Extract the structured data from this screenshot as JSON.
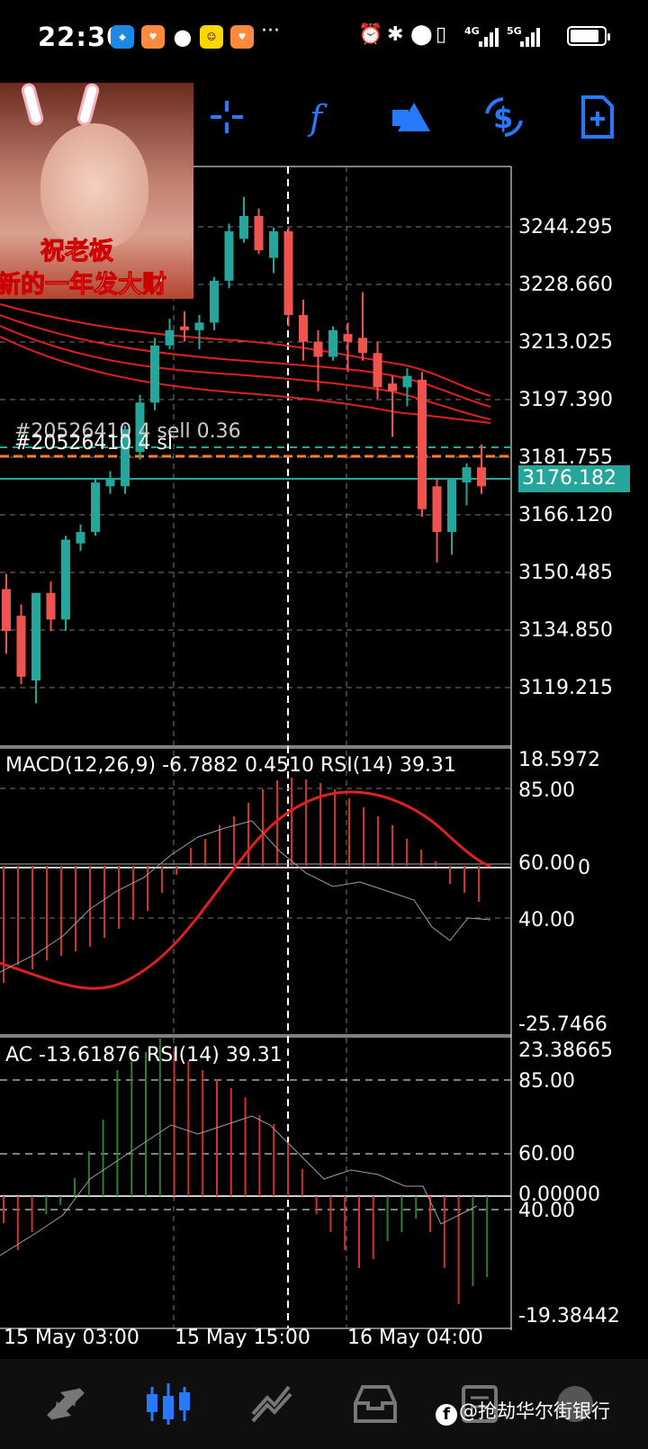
{
  "status_bar": {
    "time": "22:30",
    "notifications": [
      "hello-app-icon",
      "heart-app-icon",
      "chat-bubble-icon",
      "smile-app-icon",
      "heart-app-icon"
    ],
    "more": "···",
    "network_labels": [
      "4G",
      "5G"
    ],
    "battery_level": 0.85
  },
  "toolbar": {
    "tools": [
      "crosshair-icon",
      "function-icon",
      "objects-icon",
      "currency-swap-icon",
      "new-document-icon"
    ],
    "accent_color": "#2979ff"
  },
  "overlay": {
    "line1": "祝老板",
    "line2": "新的一年发大财"
  },
  "main_chart": {
    "y_labels": [
      "3244.295",
      "3228.660",
      "3213.025",
      "3197.390",
      "3181.755",
      "3166.120",
      "3150.485",
      "3134.850",
      "3119.215"
    ],
    "current_price": "3176.182",
    "order_label_1": "#20526410 4 sell 0.36",
    "order_label_2": "#20526410 4 sl"
  },
  "macd_panel": {
    "title": "MACD(12,26,9) -6.7882 0.4510 RSI(14) 39.31",
    "labels": {
      "top": "18.5972",
      "l85": "85.00",
      "l60": "60.00",
      "zero": "0",
      "l40": "40.00",
      "bottom": "-25.7466"
    }
  },
  "ac_panel": {
    "title": "AC -13.61876 RSI(14) 39.31",
    "labels": {
      "top": "23.38665",
      "l85": "85.00",
      "l60": "60.00",
      "zero": "0.00000",
      "l40": "40.00",
      "bottom": "-19.38442"
    }
  },
  "x_axis": [
    "15 May 03:00",
    "15 May 15:00",
    "16 May 04:00"
  ],
  "bottom_nav": [
    "quotes-icon",
    "chart-icon",
    "trade-icon",
    "history-icon",
    "messages-icon",
    "settings-icon"
  ],
  "watermark": "@抢劫华尔街银行",
  "chart_data": {
    "type": "candlestick",
    "bull_color": "#26a69a",
    "bear_color": "#ef5350",
    "y_range": [
      3108,
      3260
    ],
    "candles": [
      {
        "o": 3149,
        "h": 3153,
        "l": 3132,
        "c": 3138
      },
      {
        "o": 3142,
        "h": 3145,
        "l": 3124,
        "c": 3126
      },
      {
        "o": 3125,
        "h": 3148,
        "l": 3119,
        "c": 3148
      },
      {
        "o": 3148,
        "h": 3151,
        "l": 3138,
        "c": 3141
      },
      {
        "o": 3141,
        "h": 3163,
        "l": 3138,
        "c": 3162
      },
      {
        "o": 3161,
        "h": 3166,
        "l": 3159,
        "c": 3164
      },
      {
        "o": 3164,
        "h": 3178,
        "l": 3163,
        "c": 3177
      },
      {
        "o": 3176,
        "h": 3180,
        "l": 3174,
        "c": 3178
      },
      {
        "o": 3176,
        "h": 3192,
        "l": 3174,
        "c": 3191
      },
      {
        "o": 3185,
        "h": 3200,
        "l": 3183,
        "c": 3198
      },
      {
        "o": 3198,
        "h": 3215,
        "l": 3196,
        "c": 3213
      },
      {
        "o": 3213,
        "h": 3220,
        "l": 3212,
        "c": 3217
      },
      {
        "o": 3218,
        "h": 3222,
        "l": 3214,
        "c": 3217
      },
      {
        "o": 3217,
        "h": 3221,
        "l": 3212,
        "c": 3219
      },
      {
        "o": 3219,
        "h": 3231,
        "l": 3217,
        "c": 3230
      },
      {
        "o": 3230,
        "h": 3245,
        "l": 3228,
        "c": 3243
      },
      {
        "o": 3241,
        "h": 3252,
        "l": 3240,
        "c": 3247
      },
      {
        "o": 3247,
        "h": 3249,
        "l": 3237,
        "c": 3238
      },
      {
        "o": 3236,
        "h": 3244,
        "l": 3232,
        "c": 3243
      },
      {
        "o": 3243,
        "h": 3244,
        "l": 3218,
        "c": 3221
      },
      {
        "o": 3221,
        "h": 3225,
        "l": 3209,
        "c": 3214
      },
      {
        "o": 3214,
        "h": 3217,
        "l": 3201,
        "c": 3210
      },
      {
        "o": 3210,
        "h": 3218,
        "l": 3209,
        "c": 3217
      },
      {
        "o": 3216,
        "h": 3219,
        "l": 3206,
        "c": 3214
      },
      {
        "o": 3215,
        "h": 3227,
        "l": 3209,
        "c": 3211
      },
      {
        "o": 3211,
        "h": 3214,
        "l": 3199,
        "c": 3202
      },
      {
        "o": 3203,
        "h": 3205,
        "l": 3189,
        "c": 3201
      },
      {
        "o": 3202,
        "h": 3207,
        "l": 3197,
        "c": 3205
      },
      {
        "o": 3204,
        "h": 3206,
        "l": 3168,
        "c": 3170
      },
      {
        "o": 3176,
        "h": 3178,
        "l": 3156,
        "c": 3164
      },
      {
        "o": 3164,
        "h": 3178,
        "l": 3158,
        "c": 3178
      },
      {
        "o": 3177,
        "h": 3182,
        "l": 3171,
        "c": 3181
      },
      {
        "o": 3181,
        "h": 3187,
        "l": 3174,
        "c": 3176
      }
    ]
  }
}
